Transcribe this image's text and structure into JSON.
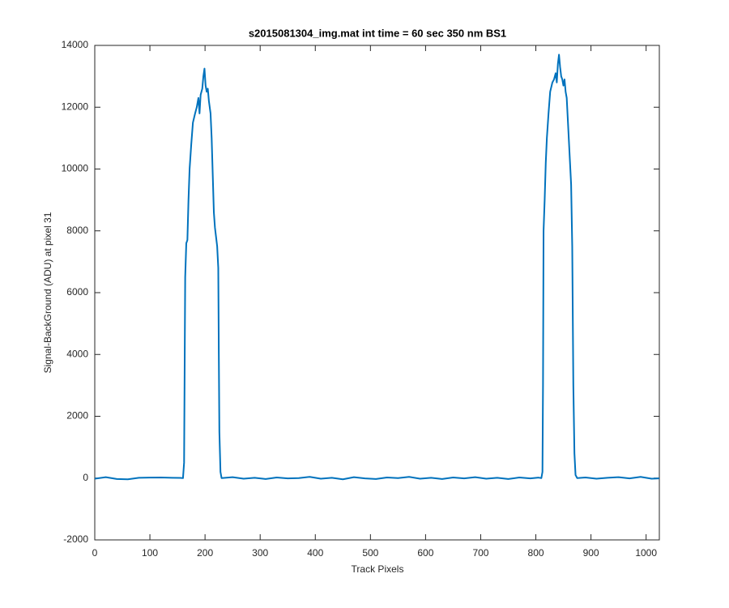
{
  "chart_data": {
    "type": "line",
    "title": "s2015081304_img.mat int time = 60 sec  350 nm BS1",
    "xlabel": "Track Pixels",
    "ylabel": "Signal-BackGround (ADU) at pixel 31",
    "color": "#0072bd",
    "x": [
      0,
      20,
      40,
      60,
      80,
      100,
      120,
      140,
      155,
      160,
      162,
      163,
      164,
      166,
      168,
      170,
      172,
      175,
      178,
      182,
      185,
      188,
      190,
      192,
      195,
      197,
      199,
      201,
      203,
      205,
      207,
      210,
      212,
      214,
      216,
      218,
      220,
      222,
      224,
      225,
      226,
      228,
      230,
      250,
      270,
      290,
      310,
      330,
      350,
      370,
      390,
      410,
      430,
      450,
      470,
      490,
      510,
      530,
      550,
      570,
      590,
      610,
      630,
      650,
      670,
      690,
      710,
      730,
      750,
      770,
      790,
      805,
      810,
      812,
      813,
      814,
      816,
      818,
      820,
      823,
      826,
      830,
      833,
      836,
      838,
      840,
      842,
      844,
      846,
      848,
      850,
      852,
      854,
      856,
      858,
      860,
      862,
      864,
      866,
      868,
      870,
      872,
      875,
      890,
      910,
      930,
      950,
      970,
      990,
      1010,
      1024
    ],
    "values": [
      -20,
      30,
      -30,
      -40,
      10,
      15,
      20,
      10,
      5,
      0,
      500,
      3500,
      6500,
      7600,
      7700,
      9000,
      10000,
      10800,
      11500,
      11800,
      12000,
      12300,
      11800,
      12400,
      12600,
      13000,
      13250,
      12700,
      12500,
      12600,
      12200,
      11800,
      11000,
      9800,
      8600,
      8100,
      7800,
      7500,
      6800,
      4000,
      1500,
      200,
      0,
      30,
      -20,
      10,
      -30,
      20,
      -10,
      0,
      40,
      -20,
      10,
      -40,
      30,
      -10,
      -30,
      20,
      0,
      40,
      -20,
      10,
      -30,
      20,
      -10,
      30,
      -20,
      10,
      -30,
      20,
      -10,
      15,
      0,
      200,
      3000,
      8000,
      9000,
      10200,
      11000,
      11800,
      12500,
      12800,
      12900,
      13100,
      12800,
      13400,
      13700,
      13300,
      13000,
      12900,
      12700,
      12900,
      12500,
      12300,
      11600,
      10900,
      10200,
      9500,
      7500,
      3000,
      800,
      100,
      0,
      20,
      -20,
      10,
      30,
      -10,
      40,
      -20,
      -10
    ],
    "xlim": [
      0,
      1024
    ],
    "ylim": [
      -2000,
      14000
    ],
    "xticks": [
      0,
      100,
      200,
      300,
      400,
      500,
      600,
      700,
      800,
      900,
      1000
    ],
    "yticks": [
      -2000,
      0,
      2000,
      4000,
      6000,
      8000,
      10000,
      12000,
      14000
    ]
  }
}
